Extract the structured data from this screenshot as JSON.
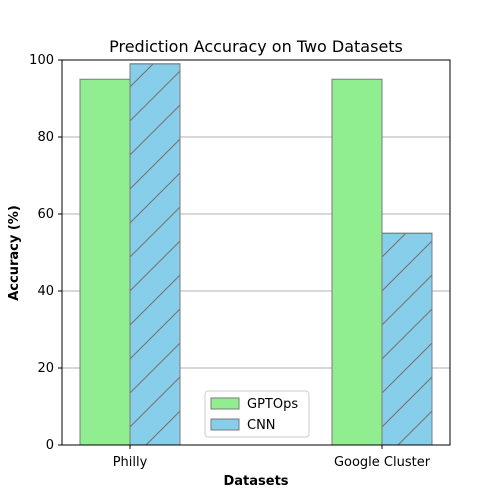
{
  "chart_data": {
    "type": "bar",
    "title": "Prediction Accuracy on Two Datasets",
    "xlabel": "Datasets",
    "ylabel": "Accuracy (%)",
    "categories": [
      "Philly",
      "Google Cluster"
    ],
    "series": [
      {
        "name": "GPTOps",
        "values": [
          95,
          95
        ],
        "color": "#90ee90",
        "hatch": "none"
      },
      {
        "name": "CNN",
        "values": [
          99,
          55
        ],
        "color": "#87ceeb",
        "hatch": "diagonal"
      }
    ],
    "ylim": [
      0,
      100
    ],
    "yticks": [
      0,
      20,
      40,
      60,
      80,
      100
    ],
    "grid": "horizontal",
    "legend_position": "bottom-center",
    "edge_color": "#7a7a7a",
    "grid_color": "#b0b0b0"
  }
}
